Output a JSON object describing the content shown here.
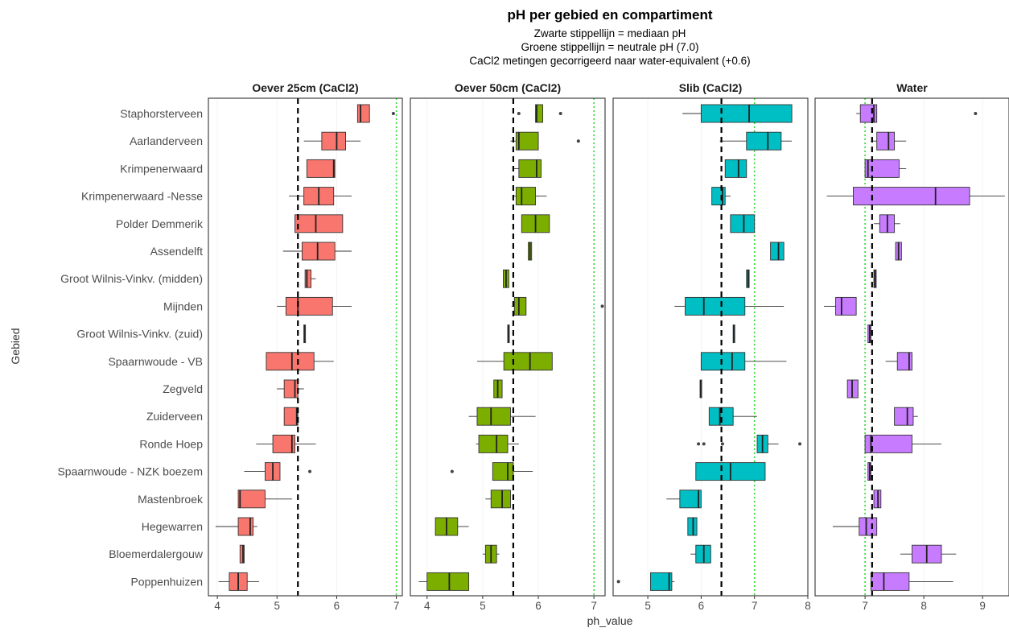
{
  "chart_data": {
    "type": "boxplot",
    "title": "pH per gebied en compartiment",
    "subtitle_lines": [
      "Zwarte stippellijn = mediaan pH",
      "Groene stippellijn = neutrale pH (7.0)",
      "CaCl2 metingen gecorrigeerd naar water-equivalent (+0.6)"
    ],
    "xlabel": "ph_value",
    "ylabel": "Gebied",
    "categories": [
      "Staphorsterveen",
      "Aarlanderveen",
      "Krimpenerwaard",
      "Krimpenerwaard -Nesse",
      "Polder Demmerik",
      "Assendelft",
      "Groot Wilnis-Vinkv. (midden)",
      "Mijnden",
      "Groot Wilnis-Vinkv. (zuid)",
      "Spaarnwoude - VB",
      "Zegveld",
      "Zuiderveen",
      "Ronde Hoep",
      "Spaarnwoude - NZK boezem",
      "Mastenbroek",
      "Hegewarren",
      "Bloemerdalergouw",
      "Poppenhuizen"
    ],
    "neutral_ph": 7.0,
    "panels": [
      {
        "name": "Oever 25cm (CaCl2)",
        "color": "#F8766D",
        "xlim": [
          3.85,
          7.1
        ],
        "xticks": [
          4,
          5,
          6,
          7
        ],
        "median_line": 5.35,
        "boxes": [
          {
            "category": "Staphorsterveen",
            "min": 6.35,
            "q1": 6.35,
            "median": 6.4,
            "q3": 6.55,
            "max": 6.55,
            "outliers": [
              6.95
            ]
          },
          {
            "category": "Aarlanderveen",
            "min": 5.45,
            "q1": 5.75,
            "median": 6.0,
            "q3": 6.15,
            "max": 6.4,
            "outliers": []
          },
          {
            "category": "Krimpenerwaard",
            "min": 5.5,
            "q1": 5.5,
            "median": 5.95,
            "q3": 5.97,
            "max": 5.97,
            "outliers": []
          },
          {
            "category": "Krimpenerwaard -Nesse",
            "min": 5.2,
            "q1": 5.45,
            "median": 5.7,
            "q3": 5.95,
            "max": 6.25,
            "outliers": []
          },
          {
            "category": "Polder Demmerik",
            "min": 5.3,
            "q1": 5.3,
            "median": 5.65,
            "q3": 6.1,
            "max": 6.1,
            "outliers": []
          },
          {
            "category": "Assendelft",
            "min": 5.1,
            "q1": 5.42,
            "median": 5.68,
            "q3": 5.97,
            "max": 6.25,
            "outliers": []
          },
          {
            "category": "Groot Wilnis-Vinkv. (midden)",
            "min": 5.47,
            "q1": 5.47,
            "median": 5.5,
            "q3": 5.57,
            "max": 5.65,
            "outliers": []
          },
          {
            "category": "Mijnden",
            "min": 5.0,
            "q1": 5.15,
            "median": 5.35,
            "q3": 5.93,
            "max": 6.25,
            "outliers": []
          },
          {
            "category": "Groot Wilnis-Vinkv. (zuid)",
            "min": 5.45,
            "q1": 5.45,
            "median": 5.46,
            "q3": 5.47,
            "max": 5.47,
            "outliers": []
          },
          {
            "category": "Spaarnwoude - VB",
            "min": 4.82,
            "q1": 4.82,
            "median": 5.25,
            "q3": 5.62,
            "max": 5.95,
            "outliers": []
          },
          {
            "category": "Zegveld",
            "min": 5.0,
            "q1": 5.12,
            "median": 5.3,
            "q3": 5.35,
            "max": 5.45,
            "outliers": []
          },
          {
            "category": "Zuiderveen",
            "min": 5.12,
            "q1": 5.12,
            "median": 5.33,
            "q3": 5.35,
            "max": 5.35,
            "outliers": []
          },
          {
            "category": "Ronde Hoep",
            "min": 4.65,
            "q1": 4.93,
            "median": 5.25,
            "q3": 5.3,
            "max": 5.65,
            "outliers": []
          },
          {
            "category": "Spaarnwoude - NZK boezem",
            "min": 4.45,
            "q1": 4.8,
            "median": 4.93,
            "q3": 5.05,
            "max": 5.05,
            "outliers": [
              5.55
            ]
          },
          {
            "category": "Mastenbroek",
            "min": 4.35,
            "q1": 4.35,
            "median": 4.38,
            "q3": 4.8,
            "max": 5.25,
            "outliers": []
          },
          {
            "category": "Hegewarren",
            "min": 3.97,
            "q1": 4.35,
            "median": 4.55,
            "q3": 4.6,
            "max": 4.67,
            "outliers": []
          },
          {
            "category": "Bloemerdalergouw",
            "min": 4.38,
            "q1": 4.38,
            "median": 4.43,
            "q3": 4.45,
            "max": 4.45,
            "outliers": []
          },
          {
            "category": "Poppenhuizen",
            "min": 4.02,
            "q1": 4.2,
            "median": 4.35,
            "q3": 4.5,
            "max": 4.7,
            "outliers": []
          }
        ]
      },
      {
        "name": "Oever 50cm (CaCl2)",
        "color": "#7CAE00",
        "xlim": [
          3.7,
          7.2
        ],
        "xticks": [
          4,
          5,
          6,
          7
        ],
        "median_line": 5.55,
        "boxes": [
          {
            "category": "Staphorsterveen",
            "min": 5.95,
            "q1": 5.95,
            "median": 5.97,
            "q3": 6.08,
            "max": 6.08,
            "outliers": [
              5.65,
              6.4
            ]
          },
          {
            "category": "Aarlanderveen",
            "min": 5.5,
            "q1": 5.6,
            "median": 5.65,
            "q3": 6.0,
            "max": 6.0,
            "outliers": [
              6.72
            ]
          },
          {
            "category": "Krimpenerwaard",
            "min": 5.55,
            "q1": 5.65,
            "median": 5.97,
            "q3": 6.05,
            "max": 6.05,
            "outliers": []
          },
          {
            "category": "Krimpenerwaard -Nesse",
            "min": 5.55,
            "q1": 5.6,
            "median": 5.7,
            "q3": 5.95,
            "max": 6.15,
            "outliers": []
          },
          {
            "category": "Polder Demmerik",
            "min": 5.7,
            "q1": 5.7,
            "median": 5.95,
            "q3": 6.2,
            "max": 6.2,
            "outliers": []
          },
          {
            "category": "Assendelft",
            "min": 5.82,
            "q1": 5.82,
            "median": 5.85,
            "q3": 5.88,
            "max": 5.88,
            "outliers": []
          },
          {
            "category": "Groot Wilnis-Vinkv. (midden)",
            "min": 5.37,
            "q1": 5.37,
            "median": 5.42,
            "q3": 5.47,
            "max": 5.47,
            "outliers": []
          },
          {
            "category": "Mijnden",
            "min": 5.52,
            "q1": 5.57,
            "median": 5.65,
            "q3": 5.78,
            "max": 5.78,
            "outliers": [
              7.15
            ]
          },
          {
            "category": "Groot Wilnis-Vinkv. (zuid)",
            "min": 5.45,
            "q1": 5.45,
            "median": 5.46,
            "q3": 5.47,
            "max": 5.47,
            "outliers": []
          },
          {
            "category": "Spaarnwoude - VB",
            "min": 4.9,
            "q1": 5.38,
            "median": 5.85,
            "q3": 6.25,
            "max": 6.25,
            "outliers": []
          },
          {
            "category": "Zegveld",
            "min": 5.2,
            "q1": 5.2,
            "median": 5.27,
            "q3": 5.35,
            "max": 5.35,
            "outliers": []
          },
          {
            "category": "Zuiderveen",
            "min": 4.75,
            "q1": 4.9,
            "median": 5.15,
            "q3": 5.5,
            "max": 5.95,
            "outliers": []
          },
          {
            "category": "Ronde Hoep",
            "min": 4.88,
            "q1": 4.93,
            "median": 5.25,
            "q3": 5.45,
            "max": 5.65,
            "outliers": []
          },
          {
            "category": "Spaarnwoude - NZK boezem",
            "min": 5.18,
            "q1": 5.18,
            "median": 5.45,
            "q3": 5.55,
            "max": 5.9,
            "outliers": [
              4.45
            ]
          },
          {
            "category": "Mastenbroek",
            "min": 5.05,
            "q1": 5.15,
            "median": 5.35,
            "q3": 5.5,
            "max": 5.5,
            "outliers": []
          },
          {
            "category": "Hegewarren",
            "min": 4.15,
            "q1": 4.15,
            "median": 4.35,
            "q3": 4.55,
            "max": 4.75,
            "outliers": []
          },
          {
            "category": "Bloemerdalergouw",
            "min": 5.0,
            "q1": 5.05,
            "median": 5.15,
            "q3": 5.25,
            "max": 5.3,
            "outliers": []
          },
          {
            "category": "Poppenhuizen",
            "min": 3.85,
            "q1": 4.0,
            "median": 4.4,
            "q3": 4.75,
            "max": 4.75,
            "outliers": []
          }
        ]
      },
      {
        "name": "Slib (CaCl2)",
        "color": "#00BFC4",
        "xlim": [
          4.35,
          8.0
        ],
        "xticks": [
          5,
          6,
          7,
          8
        ],
        "median_line": 6.38,
        "boxes": [
          {
            "category": "Staphorsterveen",
            "min": 5.65,
            "q1": 6.0,
            "median": 6.9,
            "q3": 7.7,
            "max": 7.7,
            "outliers": []
          },
          {
            "category": "Aarlanderveen",
            "min": 6.35,
            "q1": 6.85,
            "median": 7.25,
            "q3": 7.5,
            "max": 7.7,
            "outliers": []
          },
          {
            "category": "Krimpenerwaard",
            "min": 6.45,
            "q1": 6.45,
            "median": 6.7,
            "q3": 6.85,
            "max": 6.85,
            "outliers": []
          },
          {
            "category": "Krimpenerwaard -Nesse",
            "min": 6.2,
            "q1": 6.2,
            "median": 6.4,
            "q3": 6.45,
            "max": 6.55,
            "outliers": []
          },
          {
            "category": "Polder Demmerik",
            "min": 6.55,
            "q1": 6.55,
            "median": 6.8,
            "q3": 7.0,
            "max": 7.0,
            "outliers": []
          },
          {
            "category": "Assendelft",
            "min": 7.3,
            "q1": 7.3,
            "median": 7.45,
            "q3": 7.55,
            "max": 7.55,
            "outliers": []
          },
          {
            "category": "Groot Wilnis-Vinkv. (midden)",
            "min": 6.85,
            "q1": 6.85,
            "median": 6.88,
            "q3": 6.9,
            "max": 6.9,
            "outliers": []
          },
          {
            "category": "Mijnden",
            "min": 5.5,
            "q1": 5.7,
            "median": 6.05,
            "q3": 6.82,
            "max": 7.55,
            "outliers": []
          },
          {
            "category": "Groot Wilnis-Vinkv. (zuid)",
            "min": 6.6,
            "q1": 6.6,
            "median": 6.61,
            "q3": 6.62,
            "max": 6.62,
            "outliers": []
          },
          {
            "category": "Spaarnwoude - VB",
            "min": 6.0,
            "q1": 6.0,
            "median": 6.58,
            "q3": 6.82,
            "max": 7.6,
            "outliers": []
          },
          {
            "category": "Zegveld",
            "min": 5.98,
            "q1": 5.98,
            "median": 5.99,
            "q3": 6.0,
            "max": 6.0,
            "outliers": []
          },
          {
            "category": "Zuiderveen",
            "min": 6.15,
            "q1": 6.15,
            "median": 6.35,
            "q3": 6.6,
            "max": 7.05,
            "outliers": []
          },
          {
            "category": "Ronde Hoep",
            "min": 7.05,
            "q1": 7.05,
            "median": 7.15,
            "q3": 7.25,
            "max": 7.45,
            "outliers": [
              5.95,
              6.05,
              6.4,
              7.85
            ]
          },
          {
            "category": "Spaarnwoude - NZK boezem",
            "min": 5.9,
            "q1": 5.9,
            "median": 6.55,
            "q3": 7.2,
            "max": 7.2,
            "outliers": []
          },
          {
            "category": "Mastenbroek",
            "min": 5.35,
            "q1": 5.6,
            "median": 5.95,
            "q3": 6.0,
            "max": 6.0,
            "outliers": []
          },
          {
            "category": "Hegewarren",
            "min": 5.75,
            "q1": 5.75,
            "median": 5.85,
            "q3": 5.92,
            "max": 5.92,
            "outliers": []
          },
          {
            "category": "Bloemerdalergouw",
            "min": 5.8,
            "q1": 5.9,
            "median": 6.05,
            "q3": 6.18,
            "max": 6.18,
            "outliers": []
          },
          {
            "category": "Poppenhuizen",
            "min": 5.05,
            "q1": 5.05,
            "median": 5.4,
            "q3": 5.45,
            "max": 5.5,
            "outliers": [
              4.45
            ]
          }
        ]
      },
      {
        "name": "Water",
        "color": "#C77CFF",
        "xlim": [
          6.15,
          9.45
        ],
        "xticks": [
          7,
          8,
          9
        ],
        "median_line": 7.12,
        "boxes": [
          {
            "category": "Staphorsterveen",
            "min": 6.85,
            "q1": 6.92,
            "median": 7.15,
            "q3": 7.2,
            "max": 7.2,
            "outliers": [
              8.88
            ]
          },
          {
            "category": "Aarlanderveen",
            "min": 7.1,
            "q1": 7.2,
            "median": 7.4,
            "q3": 7.5,
            "max": 7.7,
            "outliers": []
          },
          {
            "category": "Krimpenerwaard",
            "min": 7.0,
            "q1": 7.0,
            "median": 7.05,
            "q3": 7.58,
            "max": 7.7,
            "outliers": []
          },
          {
            "category": "Krimpenerwaard -Nesse",
            "min": 6.35,
            "q1": 6.8,
            "median": 8.2,
            "q3": 8.78,
            "max": 9.38,
            "outliers": []
          },
          {
            "category": "Polder Demmerik",
            "min": 7.15,
            "q1": 7.25,
            "median": 7.38,
            "q3": 7.5,
            "max": 7.6,
            "outliers": []
          },
          {
            "category": "Assendelft",
            "min": 7.52,
            "q1": 7.52,
            "median": 7.57,
            "q3": 7.62,
            "max": 7.62,
            "outliers": []
          },
          {
            "category": "Groot Wilnis-Vinkv. (midden)",
            "min": 7.15,
            "q1": 7.15,
            "median": 7.17,
            "q3": 7.19,
            "max": 7.19,
            "outliers": []
          },
          {
            "category": "Mijnden",
            "min": 6.3,
            "q1": 6.5,
            "median": 6.6,
            "q3": 6.85,
            "max": 6.85,
            "outliers": []
          },
          {
            "category": "Groot Wilnis-Vinkv. (zuid)",
            "min": 7.05,
            "q1": 7.05,
            "median": 7.08,
            "q3": 7.1,
            "max": 7.1,
            "outliers": []
          },
          {
            "category": "Spaarnwoude - VB",
            "min": 7.35,
            "q1": 7.55,
            "median": 7.75,
            "q3": 7.8,
            "max": 7.8,
            "outliers": []
          },
          {
            "category": "Zegveld",
            "min": 6.7,
            "q1": 6.7,
            "median": 6.78,
            "q3": 6.88,
            "max": 6.88,
            "outliers": []
          },
          {
            "category": "Zuiderveen",
            "min": 7.5,
            "q1": 7.5,
            "median": 7.72,
            "q3": 7.82,
            "max": 7.9,
            "outliers": []
          },
          {
            "category": "Ronde Hoep",
            "min": 7.0,
            "q1": 7.0,
            "median": 7.1,
            "q3": 7.8,
            "max": 8.3,
            "outliers": []
          },
          {
            "category": "Spaarnwoude - NZK boezem",
            "min": 7.05,
            "q1": 7.05,
            "median": 7.08,
            "q3": 7.1,
            "max": 7.1,
            "outliers": []
          },
          {
            "category": "Mastenbroek",
            "min": 7.15,
            "q1": 7.15,
            "median": 7.22,
            "q3": 7.27,
            "max": 7.27,
            "outliers": []
          },
          {
            "category": "Hegewarren",
            "min": 6.45,
            "q1": 6.9,
            "median": 7.02,
            "q3": 7.2,
            "max": 7.2,
            "outliers": []
          },
          {
            "category": "Bloemerdalergouw",
            "min": 7.6,
            "q1": 7.8,
            "median": 8.05,
            "q3": 8.3,
            "max": 8.55,
            "outliers": []
          },
          {
            "category": "Poppenhuizen",
            "min": 7.1,
            "q1": 7.1,
            "median": 7.32,
            "q3": 7.75,
            "max": 8.5,
            "outliers": []
          }
        ]
      }
    ]
  }
}
